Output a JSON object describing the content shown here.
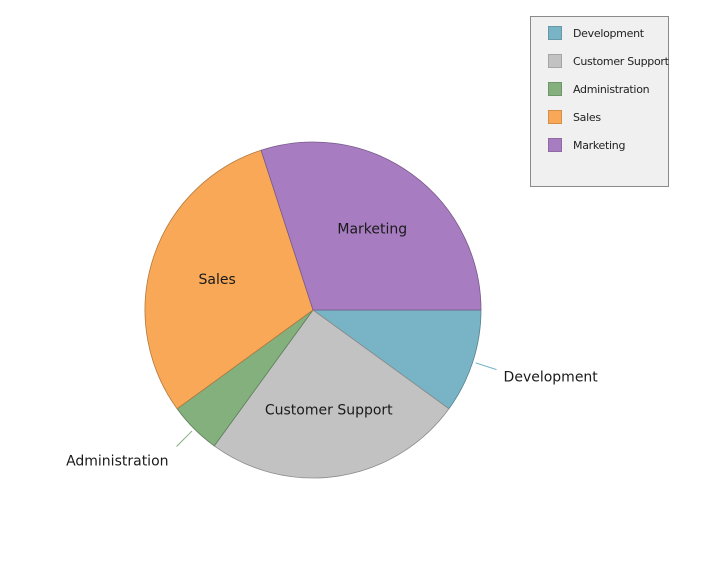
{
  "chart_data": {
    "type": "pie",
    "title": "",
    "categories": [
      "Development",
      "Customer Support",
      "Administration",
      "Sales",
      "Marketing"
    ],
    "values": [
      10,
      25,
      5,
      30,
      30
    ],
    "colors": [
      "#78b4c5",
      "#c2c2c2",
      "#83b07d",
      "#f8a857",
      "#a77cc0"
    ],
    "legend": {
      "position": "top-right",
      "entries": [
        "Development",
        "Customer Support",
        "Administration",
        "Sales",
        "Marketing"
      ]
    },
    "labels": {
      "Development": "Development",
      "Customer Support": "Customer Support",
      "Administration": "Administration",
      "Sales": "Sales",
      "Marketing": "Marketing"
    }
  }
}
